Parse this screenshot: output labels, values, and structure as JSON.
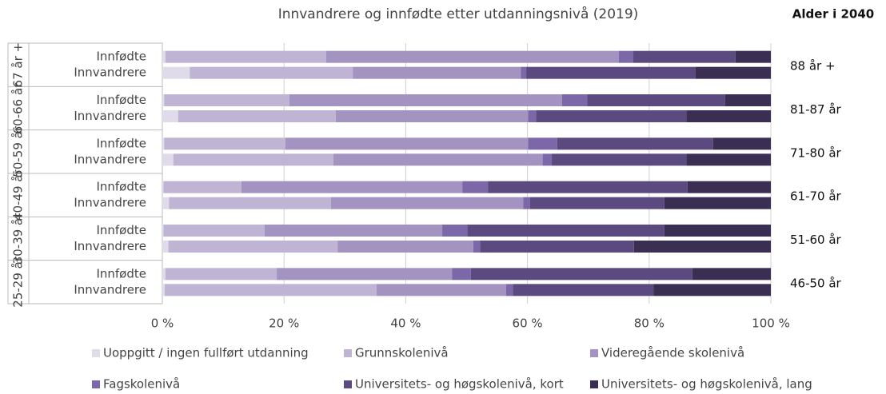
{
  "chart_data": {
    "type": "stacked-barh",
    "title": "Innvandrere og innfødte etter utdanningsnivå (2019)",
    "right_title": "Alder i 2040",
    "groups": [
      "67 år +",
      "60-66 år",
      "50-59 år",
      "40-49 år",
      "30-39 år",
      "25-29 år"
    ],
    "right_labels": [
      "88 år +",
      "81-87 år",
      "71-80 år",
      "61-70 år",
      "51-60 år",
      "46-50 år"
    ],
    "categories": [
      "Innfødte",
      "Innvandrere",
      "Innfødte",
      "Innvandrere",
      "Innfødte",
      "Innvandrere",
      "Innfødte",
      "Innvandrere",
      "Innfødte",
      "Innvandrere",
      "Innfødte",
      "Innvandrere"
    ],
    "series": [
      {
        "name": "Uoppgitt / ingen fullført utdanning",
        "color": "#e0dbe9",
        "values": [
          0.5,
          4.5,
          0.3,
          2.6,
          0.3,
          1.8,
          0.2,
          1.1,
          0.2,
          1.0,
          0.5,
          0.4
        ]
      },
      {
        "name": "Grunnskolenivå",
        "color": "#bfb4d4",
        "values": [
          26.4,
          26.8,
          20.6,
          25.9,
          19.9,
          26.3,
          12.8,
          26.6,
          16.6,
          27.8,
          18.3,
          34.8
        ]
      },
      {
        "name": "Videregående skolenivå",
        "color": "#a293c0",
        "values": [
          48.1,
          27.6,
          44.8,
          31.6,
          39.9,
          34.4,
          36.3,
          31.6,
          29.2,
          22.3,
          28.8,
          21.3
        ]
      },
      {
        "name": "Fagskolenivå",
        "color": "#7c67a8",
        "values": [
          2.4,
          0.9,
          4.1,
          1.3,
          4.8,
          1.5,
          4.2,
          1.1,
          4.1,
          1.1,
          3.1,
          1.1
        ]
      },
      {
        "name": "Universitets- og høgskolenivå, kort",
        "color": "#5b4a80",
        "values": [
          16.8,
          27.8,
          22.7,
          24.7,
          25.6,
          22.1,
          32.8,
          22.1,
          32.4,
          25.3,
          36.4,
          23.1
        ]
      },
      {
        "name": "Universitets- og høgskolenivå, lang",
        "color": "#3a2f52",
        "values": [
          5.8,
          12.4,
          7.5,
          13.9,
          9.5,
          13.9,
          13.7,
          17.5,
          17.5,
          22.5,
          12.9,
          19.3
        ]
      }
    ],
    "xlim": [
      0,
      100
    ],
    "xticks": [
      {
        "value": 0,
        "label": "0 %"
      },
      {
        "value": 20,
        "label": "20 %"
      },
      {
        "value": 40,
        "label": "40 %"
      },
      {
        "value": 60,
        "label": "60 %"
      },
      {
        "value": 80,
        "label": "80 %"
      },
      {
        "value": 100,
        "label": "100 %"
      }
    ],
    "grid": true
  }
}
